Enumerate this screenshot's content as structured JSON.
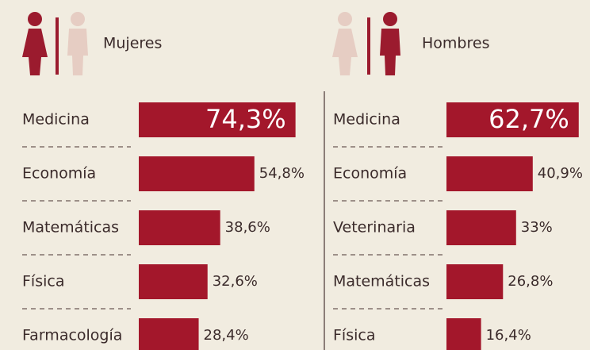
{
  "chart_data": [
    {
      "type": "bar",
      "title": "Mujeres",
      "categories": [
        "Medicina",
        "Economía",
        "Matemáticas",
        "Física",
        "Farmacología"
      ],
      "values": [
        74.3,
        54.8,
        38.6,
        32.6,
        28.4
      ],
      "value_labels": [
        "74,3%",
        "54,8%",
        "38,6%",
        "32,6%",
        "28,4%"
      ],
      "color": "#a3172b"
    },
    {
      "type": "bar",
      "title": "Hombres",
      "categories": [
        "Medicina",
        "Economía",
        "Veterinaria",
        "Matemáticas",
        "Física"
      ],
      "values": [
        62.7,
        40.9,
        33,
        26.8,
        16.4
      ],
      "value_labels": [
        "62,7%",
        "40,9%",
        "33%",
        "26,8%",
        "16,4%"
      ],
      "color": "#a3172b"
    }
  ]
}
